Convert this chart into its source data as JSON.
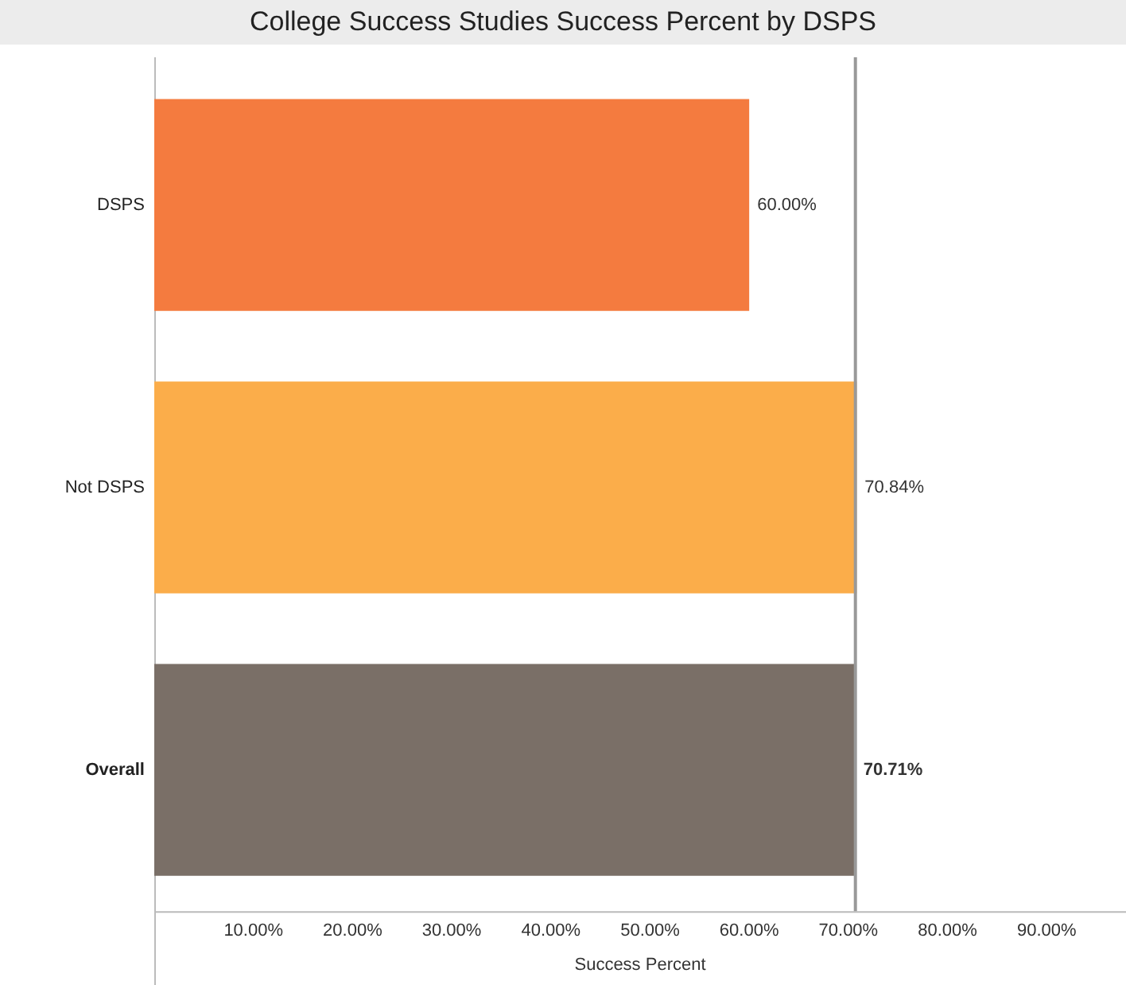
{
  "chart_data": {
    "type": "bar",
    "orientation": "horizontal",
    "title": "College Success Studies Success Percent by DSPS",
    "xlabel": "Success Percent",
    "categories": [
      "DSPS",
      "Not DSPS",
      "Overall"
    ],
    "values": [
      60.0,
      70.84,
      70.71
    ],
    "colors": [
      "#f47b3f",
      "#fbad4a",
      "#7a6f67"
    ],
    "value_labels": [
      "60.00%",
      "70.84%",
      "70.71%"
    ],
    "xlim": [
      0,
      98
    ],
    "xticks": [
      {
        "value": 10,
        "label": "10.00%"
      },
      {
        "value": 20,
        "label": "20.00%"
      },
      {
        "value": 30,
        "label": "30.00%"
      },
      {
        "value": 40,
        "label": "40.00%"
      },
      {
        "value": 50,
        "label": "50.00%"
      },
      {
        "value": 60,
        "label": "60.00%"
      },
      {
        "value": 70,
        "label": "70.00%"
      },
      {
        "value": 80,
        "label": "80.00%"
      },
      {
        "value": 90,
        "label": "90.00%"
      }
    ],
    "ref_lines": [
      {
        "axis": "x",
        "value": 70.71,
        "color": "#999999"
      }
    ],
    "grid": false,
    "legend": false
  }
}
